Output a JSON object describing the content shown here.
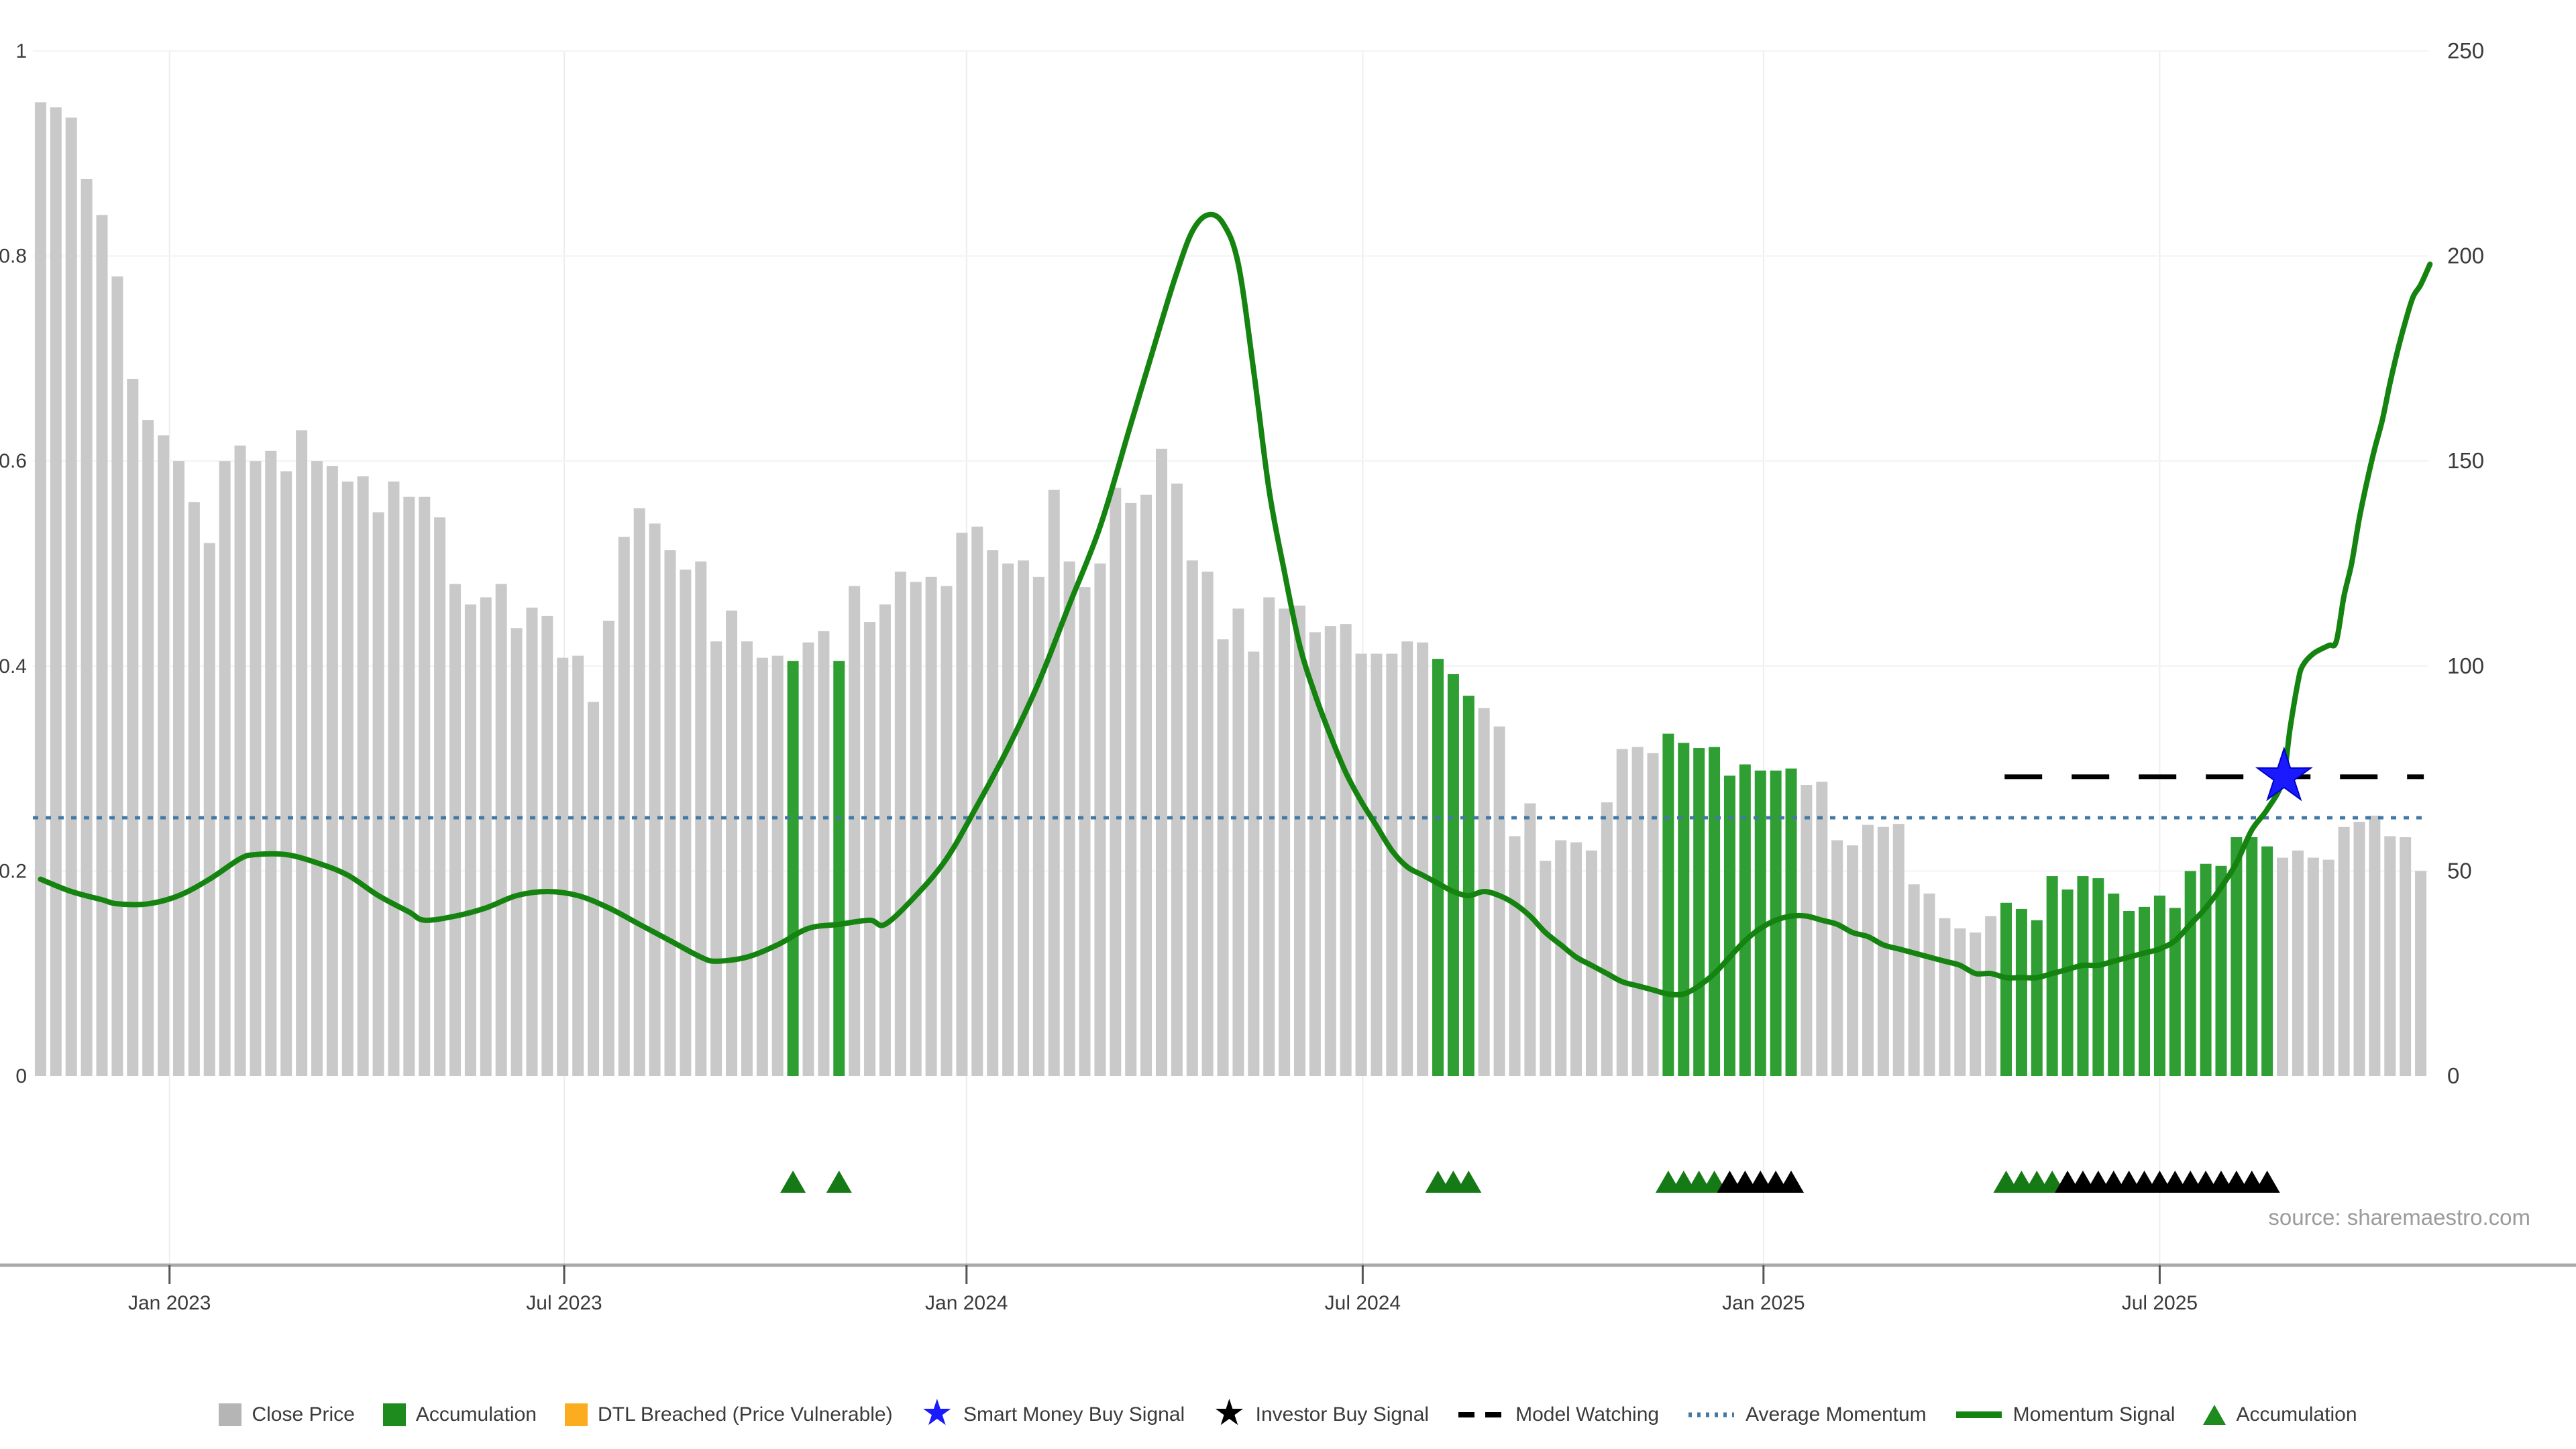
{
  "source": "source: sharemaestro.com",
  "colors": {
    "close_bar": "#c9c9c9",
    "accumulation_bar": "#2f9e33",
    "momentum_line": "#15830f",
    "avg_momentum_line": "#4479a5",
    "model_watching_line": "#000000",
    "smart_money_star": "#1a1aff",
    "investor_star": "#000000",
    "dtl_breached": "#fbad1f",
    "triangle_green": "#157a15",
    "triangle_black": "#000000",
    "axis_text": "#3b3b3b",
    "grid_major": "#f1f4f6",
    "axis_line": "#a8a8a8",
    "source_text": "#9b9b9b"
  },
  "legend": {
    "items": [
      {
        "type": "swatch",
        "color": "#b5b5b5",
        "label": "Close Price"
      },
      {
        "type": "swatch",
        "color": "#1e8b1e",
        "label": "Accumulation"
      },
      {
        "type": "swatch",
        "color": "#fbad1f",
        "label": "DTL Breached (Price Vulnerable)"
      },
      {
        "type": "star",
        "color": "#1a1aff",
        "label": "Smart Money Buy Signal"
      },
      {
        "type": "star",
        "color": "#000000",
        "label": "Investor Buy Signal"
      },
      {
        "type": "dash",
        "color": "#000000",
        "label": "Model Watching"
      },
      {
        "type": "dots",
        "color": "#4479a5",
        "label": "Average Momentum"
      },
      {
        "type": "line",
        "color": "#15830f",
        "label": "Momentum Signal"
      },
      {
        "type": "triangle",
        "color": "#1e8b1e",
        "label": "Accumulation"
      }
    ]
  },
  "chart_data": {
    "type": "bar",
    "title": "",
    "xlabel": "",
    "ylabel_left": "",
    "ylabel_right": "",
    "x_tick_labels": [
      "Jan 2023",
      "Jul 2023",
      "Jan 2024",
      "Jul 2024",
      "Jan 2025",
      "Jul 2025"
    ],
    "x_tick_indices": [
      8.4,
      34.1,
      60.3,
      86.1,
      112.2,
      138.0
    ],
    "left_axis_ticks": [
      0,
      0.2,
      0.4,
      0.6,
      0.8,
      1
    ],
    "right_axis_ticks": [
      0,
      50,
      100,
      150,
      200,
      250
    ],
    "ylim_left": [
      0,
      1
    ],
    "ylim_right": [
      0,
      250
    ],
    "grid": true,
    "legend_position": "bottom",
    "series": [
      {
        "name": "Close Price (normalized, left axis)",
        "type": "bar",
        "values": [
          0.95,
          0.945,
          0.935,
          0.875,
          0.84,
          0.78,
          0.68,
          0.64,
          0.625,
          0.6,
          0.56,
          0.52,
          0.6,
          0.615,
          0.6,
          0.61,
          0.59,
          0.63,
          0.6,
          0.595,
          0.58,
          0.585,
          0.55,
          0.58,
          0.565,
          0.565,
          0.545,
          0.48,
          0.46,
          0.467,
          0.48,
          0.437,
          0.457,
          0.449,
          0.408,
          0.41,
          0.365,
          0.444,
          0.526,
          0.554,
          0.539,
          0.513,
          0.494,
          0.502,
          0.424,
          0.454,
          0.424,
          0.408,
          0.41,
          0.405,
          0.423,
          0.434,
          0.405,
          0.478,
          0.443,
          0.46,
          0.492,
          0.482,
          0.487,
          0.478,
          0.53,
          0.536,
          0.513,
          0.5,
          0.503,
          0.487,
          0.572,
          0.502,
          0.477,
          0.5,
          0.574,
          0.559,
          0.567,
          0.612,
          0.578,
          0.503,
          0.492,
          0.426,
          0.456,
          0.414,
          0.467,
          0.456,
          0.459,
          0.433,
          0.439,
          0.441,
          0.412,
          0.412,
          0.412,
          0.424,
          0.423,
          0.407,
          0.392,
          0.371,
          0.359,
          0.341,
          0.234,
          0.266,
          0.21,
          0.23,
          0.228,
          0.22,
          0.267,
          0.319,
          0.321,
          0.315,
          0.334,
          0.325,
          0.32,
          0.321,
          0.293,
          0.304,
          0.298,
          0.298,
          0.3,
          0.284,
          0.287,
          0.23,
          0.225,
          0.245,
          0.243,
          0.246,
          0.187,
          0.178,
          0.154,
          0.144,
          0.14,
          0.156,
          0.169,
          0.163,
          0.152,
          0.195,
          0.182,
          0.195,
          0.193,
          0.178,
          0.161,
          0.165,
          0.176,
          0.164,
          0.2,
          0.207,
          0.205,
          0.233,
          0.233,
          0.224,
          0.213,
          0.22,
          0.213,
          0.211,
          0.243,
          0.248,
          0.254,
          0.234,
          0.233,
          0.2
        ],
        "accumulation_indices": [
          49,
          52,
          91,
          92,
          93,
          106,
          107,
          108,
          109,
          110,
          111,
          112,
          113,
          114,
          128,
          129,
          130,
          131,
          132,
          133,
          134,
          135,
          136,
          137,
          138,
          139,
          140,
          141,
          142,
          143,
          144,
          145
        ]
      },
      {
        "name": "Momentum Signal (right axis)",
        "type": "line",
        "points": [
          [
            0,
            48
          ],
          [
            2,
            45
          ],
          [
            4,
            43
          ],
          [
            5,
            42
          ],
          [
            7,
            42
          ],
          [
            9,
            44
          ],
          [
            11,
            48
          ],
          [
            13,
            53
          ],
          [
            14,
            54
          ],
          [
            16,
            54
          ],
          [
            18,
            52
          ],
          [
            20,
            49
          ],
          [
            22,
            44
          ],
          [
            24,
            40
          ],
          [
            25,
            38
          ],
          [
            27,
            39
          ],
          [
            29,
            41
          ],
          [
            31,
            44
          ],
          [
            33,
            45
          ],
          [
            35,
            44
          ],
          [
            37,
            41
          ],
          [
            39,
            37
          ],
          [
            41,
            33
          ],
          [
            43,
            29
          ],
          [
            44,
            28
          ],
          [
            46,
            29
          ],
          [
            48,
            32
          ],
          [
            50,
            36
          ],
          [
            52,
            37
          ],
          [
            54,
            38
          ],
          [
            55,
            37
          ],
          [
            57,
            44
          ],
          [
            59,
            53
          ],
          [
            61,
            66
          ],
          [
            63,
            80
          ],
          [
            65,
            96
          ],
          [
            67,
            115
          ],
          [
            69,
            134
          ],
          [
            71,
            159
          ],
          [
            73,
            184
          ],
          [
            74,
            196
          ],
          [
            75,
            206
          ],
          [
            76,
            210
          ],
          [
            77,
            208
          ],
          [
            78,
            198
          ],
          [
            79,
            172
          ],
          [
            80,
            143
          ],
          [
            81,
            123
          ],
          [
            82,
            105
          ],
          [
            83,
            93
          ],
          [
            84,
            83
          ],
          [
            85,
            74
          ],
          [
            86,
            67
          ],
          [
            87,
            61
          ],
          [
            88,
            55
          ],
          [
            89,
            51
          ],
          [
            90,
            49
          ],
          [
            91,
            47
          ],
          [
            92,
            45
          ],
          [
            93,
            44
          ],
          [
            94,
            45
          ],
          [
            95,
            44
          ],
          [
            96,
            42
          ],
          [
            97,
            39
          ],
          [
            98,
            35
          ],
          [
            99,
            32
          ],
          [
            100,
            29
          ],
          [
            101,
            27
          ],
          [
            102,
            25
          ],
          [
            103,
            23
          ],
          [
            104,
            22
          ],
          [
            105,
            21
          ],
          [
            106,
            20
          ],
          [
            107,
            20
          ],
          [
            108,
            22
          ],
          [
            109,
            25
          ],
          [
            110,
            29
          ],
          [
            111,
            33
          ],
          [
            112,
            36
          ],
          [
            113,
            38
          ],
          [
            114,
            39
          ],
          [
            115,
            39
          ],
          [
            116,
            38
          ],
          [
            117,
            37
          ],
          [
            118,
            35
          ],
          [
            119,
            34
          ],
          [
            120,
            32
          ],
          [
            121,
            31
          ],
          [
            122,
            30
          ],
          [
            123,
            29
          ],
          [
            124,
            28
          ],
          [
            125,
            27
          ],
          [
            126,
            25
          ],
          [
            127,
            25
          ],
          [
            128,
            24
          ],
          [
            129,
            24
          ],
          [
            130,
            24
          ],
          [
            131,
            25
          ],
          [
            132,
            26
          ],
          [
            133,
            27
          ],
          [
            134,
            27
          ],
          [
            135,
            28
          ],
          [
            136,
            29
          ],
          [
            137,
            30
          ],
          [
            138,
            31
          ],
          [
            139,
            33
          ],
          [
            140,
            37
          ],
          [
            141,
            41
          ],
          [
            142,
            46
          ],
          [
            143,
            52
          ],
          [
            144,
            60
          ],
          [
            145,
            65
          ],
          [
            146,
            72
          ],
          [
            146.5,
            85
          ],
          [
            147,
            96
          ],
          [
            147.3,
            100
          ],
          [
            148,
            103
          ],
          [
            149,
            105
          ],
          [
            149.5,
            106
          ],
          [
            150,
            117
          ],
          [
            150.5,
            125
          ],
          [
            151,
            136
          ],
          [
            151.5,
            145
          ],
          [
            152,
            153
          ],
          [
            152.5,
            160
          ],
          [
            153,
            169
          ],
          [
            153.5,
            177
          ],
          [
            154,
            184
          ],
          [
            154.5,
            190
          ],
          [
            155,
            193
          ],
          [
            155.6,
            198
          ]
        ]
      },
      {
        "name": "Average Momentum (right axis)",
        "type": "hline_dotted",
        "value": 63
      },
      {
        "name": "Model Watching (right axis)",
        "type": "hline_dashed",
        "value": 73,
        "from_index": 127.9,
        "to_index": 155.2
      }
    ],
    "markers": {
      "smart_money_buy_signal": {
        "index": 146.1,
        "value_right": 73
      },
      "accumulation_triangles_green": [
        49,
        52,
        91,
        92,
        93,
        106,
        107,
        108,
        109,
        128,
        129,
        130,
        131
      ],
      "investor_triangles_black": [
        110,
        111,
        112,
        113,
        114,
        132,
        133,
        134,
        135,
        136,
        137,
        138,
        139,
        140,
        141,
        142,
        143,
        144,
        145
      ]
    }
  }
}
